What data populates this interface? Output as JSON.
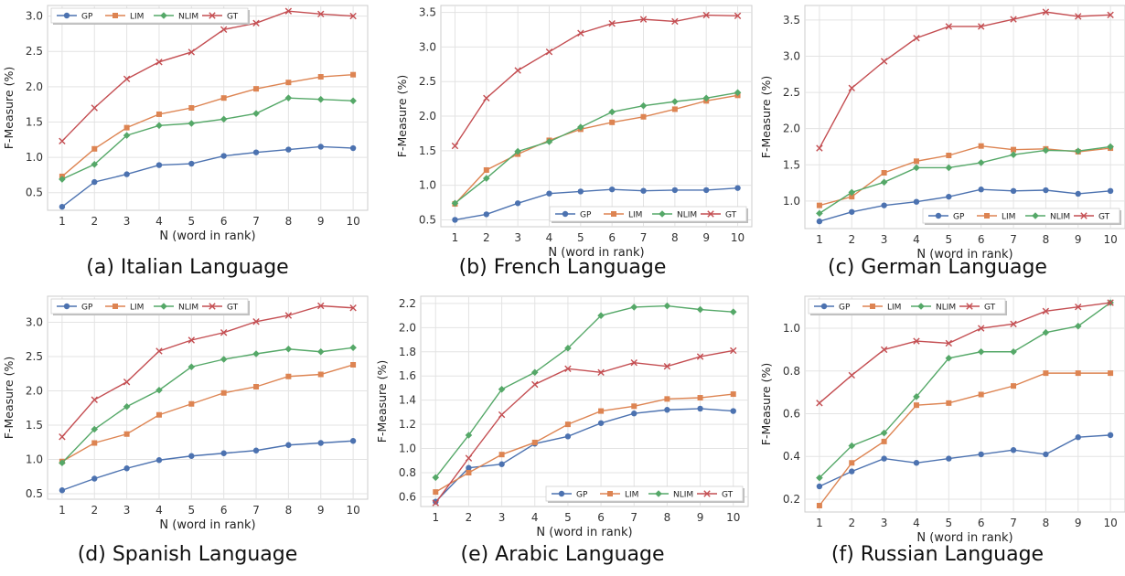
{
  "figure": {
    "legend_entries": [
      "GP",
      "LIM",
      "NLIM",
      "GT"
    ],
    "series_colors": {
      "GP": "#4c72b0",
      "LIM": "#dd8452",
      "NLIM": "#55a868",
      "GT": "#c44e52"
    },
    "series_markers": {
      "GP": "circle",
      "LIM": "square",
      "NLIM": "diamond",
      "GT": "cross"
    }
  },
  "chart_data": [
    {
      "type": "line",
      "caption": "(a) Italian Language",
      "xlabel": "N (word in rank)",
      "ylabel": "F-Measure (%)",
      "x": [
        1,
        2,
        3,
        4,
        5,
        6,
        7,
        8,
        9,
        10
      ],
      "ylim": [
        0.25,
        3.15
      ],
      "yticks": [
        "0.5",
        "1.0",
        "1.5",
        "2.0",
        "2.5",
        "3.0"
      ],
      "legend": "top-left",
      "grid": true,
      "series": [
        {
          "name": "GP",
          "values": [
            0.3,
            0.65,
            0.76,
            0.89,
            0.91,
            1.02,
            1.07,
            1.11,
            1.15,
            1.13
          ]
        },
        {
          "name": "LIM",
          "values": [
            0.73,
            1.12,
            1.42,
            1.61,
            1.7,
            1.84,
            1.97,
            2.06,
            2.14,
            2.17
          ]
        },
        {
          "name": "NLIM",
          "values": [
            0.69,
            0.9,
            1.31,
            1.45,
            1.48,
            1.54,
            1.62,
            1.84,
            1.82,
            1.8
          ]
        },
        {
          "name": "GT",
          "values": [
            1.23,
            1.7,
            2.11,
            2.35,
            2.49,
            2.81,
            2.9,
            3.07,
            3.03,
            3.0
          ]
        }
      ]
    },
    {
      "type": "line",
      "caption": "(b) French Language",
      "xlabel": "N (word in rank)",
      "ylabel": "F-Measure (%)",
      "x": [
        1,
        2,
        3,
        4,
        5,
        6,
        7,
        8,
        9,
        10
      ],
      "ylim": [
        0.4,
        3.6
      ],
      "yticks": [
        "0.5",
        "1.0",
        "1.5",
        "2.0",
        "2.5",
        "3.0",
        "3.5"
      ],
      "legend": "bottom-right",
      "grid": true,
      "series": [
        {
          "name": "GP",
          "values": [
            0.5,
            0.58,
            0.74,
            0.88,
            0.91,
            0.94,
            0.92,
            0.93,
            0.93,
            0.96
          ]
        },
        {
          "name": "LIM",
          "values": [
            0.73,
            1.22,
            1.45,
            1.65,
            1.81,
            1.91,
            1.99,
            2.1,
            2.22,
            2.3
          ]
        },
        {
          "name": "NLIM",
          "values": [
            0.74,
            1.1,
            1.49,
            1.63,
            1.84,
            2.06,
            2.15,
            2.21,
            2.26,
            2.34
          ]
        },
        {
          "name": "GT",
          "values": [
            1.57,
            2.26,
            2.66,
            2.93,
            3.2,
            3.34,
            3.4,
            3.37,
            3.46,
            3.45
          ]
        }
      ]
    },
    {
      "type": "line",
      "caption": "(c) German Language",
      "xlabel": "N (word in rank)",
      "ylabel": "F-Measure (%)",
      "x": [
        1,
        2,
        3,
        4,
        5,
        6,
        7,
        8,
        9,
        10
      ],
      "ylim": [
        0.62,
        3.7
      ],
      "yticks": [
        "1.0",
        "1.5",
        "2.0",
        "2.5",
        "3.0",
        "3.5"
      ],
      "legend": "bottom-right",
      "grid": true,
      "series": [
        {
          "name": "GP",
          "values": [
            0.72,
            0.85,
            0.94,
            0.99,
            1.06,
            1.16,
            1.14,
            1.15,
            1.1,
            1.14
          ]
        },
        {
          "name": "LIM",
          "values": [
            0.94,
            1.06,
            1.39,
            1.55,
            1.63,
            1.76,
            1.71,
            1.72,
            1.68,
            1.73
          ]
        },
        {
          "name": "NLIM",
          "values": [
            0.83,
            1.12,
            1.26,
            1.46,
            1.46,
            1.53,
            1.64,
            1.7,
            1.69,
            1.75
          ]
        },
        {
          "name": "GT",
          "values": [
            1.73,
            2.56,
            2.93,
            3.25,
            3.41,
            3.41,
            3.51,
            3.61,
            3.55,
            3.57
          ]
        }
      ]
    },
    {
      "type": "line",
      "caption": "(d) Spanish Language",
      "xlabel": "N (word in rank)",
      "ylabel": "F-Measure (%)",
      "x": [
        1,
        2,
        3,
        4,
        5,
        6,
        7,
        8,
        9,
        10
      ],
      "ylim": [
        0.42,
        3.38
      ],
      "yticks": [
        "0.5",
        "1.0",
        "1.5",
        "2.0",
        "2.5",
        "3.0"
      ],
      "legend": "top-left",
      "grid": true,
      "series": [
        {
          "name": "GP",
          "values": [
            0.55,
            0.72,
            0.87,
            0.99,
            1.05,
            1.09,
            1.13,
            1.21,
            1.24,
            1.27
          ]
        },
        {
          "name": "LIM",
          "values": [
            0.97,
            1.24,
            1.37,
            1.65,
            1.81,
            1.97,
            2.06,
            2.21,
            2.24,
            2.38
          ]
        },
        {
          "name": "NLIM",
          "values": [
            0.95,
            1.44,
            1.77,
            2.01,
            2.35,
            2.46,
            2.54,
            2.61,
            2.57,
            2.63
          ]
        },
        {
          "name": "GT",
          "values": [
            1.33,
            1.87,
            2.13,
            2.58,
            2.74,
            2.85,
            3.01,
            3.1,
            3.24,
            3.21
          ]
        }
      ]
    },
    {
      "type": "line",
      "caption": "(e) Arabic Language",
      "xlabel": "N (word in rank)",
      "ylabel": "F-Measure (%)",
      "x": [
        1,
        2,
        3,
        4,
        5,
        6,
        7,
        8,
        9,
        10
      ],
      "ylim": [
        0.52,
        2.26
      ],
      "yticks": [
        "0.6",
        "0.8",
        "1.0",
        "1.2",
        "1.4",
        "1.6",
        "1.8",
        "2.0",
        "2.2"
      ],
      "legend": "bottom-right",
      "grid": true,
      "series": [
        {
          "name": "GP",
          "values": [
            0.56,
            0.84,
            0.87,
            1.04,
            1.1,
            1.21,
            1.29,
            1.32,
            1.33,
            1.31
          ]
        },
        {
          "name": "LIM",
          "values": [
            0.64,
            0.8,
            0.95,
            1.05,
            1.2,
            1.31,
            1.35,
            1.41,
            1.42,
            1.45
          ]
        },
        {
          "name": "NLIM",
          "values": [
            0.76,
            1.11,
            1.49,
            1.63,
            1.83,
            2.1,
            2.17,
            2.18,
            2.15,
            2.13
          ]
        },
        {
          "name": "GT",
          "values": [
            0.55,
            0.92,
            1.28,
            1.53,
            1.66,
            1.63,
            1.71,
            1.68,
            1.76,
            1.81
          ]
        }
      ]
    },
    {
      "type": "line",
      "caption": "(f) Russian Language",
      "xlabel": "N (word in rank)",
      "ylabel": "F-Measure (%)",
      "x": [
        1,
        2,
        3,
        4,
        5,
        6,
        7,
        8,
        9,
        10
      ],
      "ylim": [
        0.14,
        1.15
      ],
      "yticks": [
        "0.2",
        "0.4",
        "0.6",
        "0.8",
        "1.0"
      ],
      "legend": "top-left",
      "grid": true,
      "series": [
        {
          "name": "GP",
          "values": [
            0.26,
            0.33,
            0.39,
            0.37,
            0.39,
            0.41,
            0.43,
            0.41,
            0.49,
            0.5
          ]
        },
        {
          "name": "LIM",
          "values": [
            0.17,
            0.37,
            0.47,
            0.64,
            0.65,
            0.69,
            0.73,
            0.79,
            0.79,
            0.79
          ]
        },
        {
          "name": "NLIM",
          "values": [
            0.3,
            0.45,
            0.51,
            0.68,
            0.86,
            0.89,
            0.89,
            0.98,
            1.01,
            1.12
          ]
        },
        {
          "name": "GT",
          "values": [
            0.65,
            0.78,
            0.9,
            0.94,
            0.93,
            1.0,
            1.02,
            1.08,
            1.1,
            1.12
          ]
        }
      ]
    }
  ]
}
